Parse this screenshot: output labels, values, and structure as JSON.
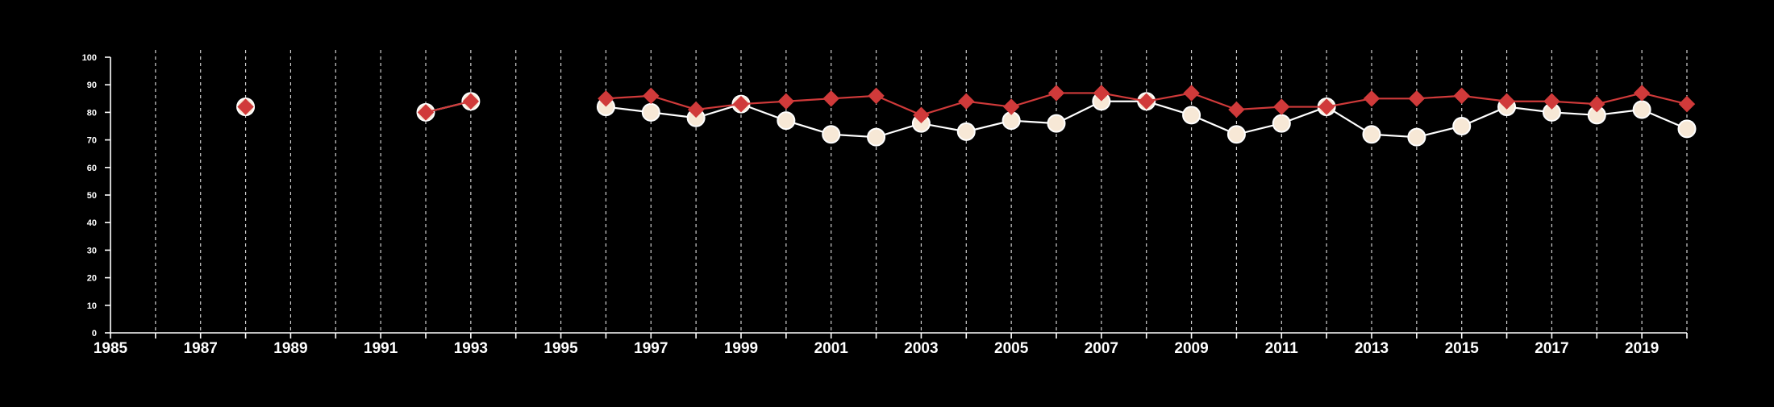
{
  "chart_data": {
    "type": "line",
    "background": "#000000",
    "x": [
      1988,
      1992,
      1993,
      1996,
      1997,
      1998,
      1999,
      2000,
      2001,
      2002,
      2003,
      2004,
      2005,
      2006,
      2007,
      2008,
      2009,
      2010,
      2011,
      2012,
      2013,
      2014,
      2015,
      2016,
      2017,
      2018,
      2019,
      2020
    ],
    "series": [
      {
        "marker": "circle",
        "color": "#ffffff",
        "marker_fill": "#f7e8d6",
        "values": [
          82,
          80,
          84,
          82,
          80,
          78,
          83,
          77,
          72,
          71,
          76,
          73,
          77,
          76,
          84,
          84,
          79,
          72,
          76,
          82,
          72,
          71,
          75,
          82,
          80,
          79,
          81,
          74
        ]
      },
      {
        "marker": "diamond",
        "color": "#d03a3a",
        "values": [
          82,
          80,
          84,
          85,
          86,
          81,
          83,
          84,
          85,
          86,
          79,
          84,
          82,
          87,
          87,
          84,
          87,
          81,
          82,
          82,
          85,
          85,
          86,
          84,
          84,
          83,
          87,
          83
        ]
      }
    ],
    "xlim": [
      1985,
      2020
    ],
    "ylim": [
      0,
      100
    ],
    "yticks": [
      0,
      10,
      20,
      30,
      40,
      50,
      60,
      70,
      80,
      90,
      100
    ],
    "xtick_labels": [
      "1985",
      "1987",
      "1989",
      "1991",
      "1993",
      "1995",
      "1997",
      "1999",
      "2001",
      "2003",
      "2005",
      "2007",
      "2009",
      "2011",
      "2013",
      "2015",
      "2017",
      "2019"
    ],
    "xtick_label_values": [
      1985,
      1987,
      1989,
      1991,
      1993,
      1995,
      1997,
      1999,
      2001,
      2003,
      2005,
      2007,
      2009,
      2011,
      2013,
      2015,
      2017,
      2019
    ],
    "vertical_grid": "dashed, every year",
    "horizontal_grid": false,
    "legend": false
  }
}
